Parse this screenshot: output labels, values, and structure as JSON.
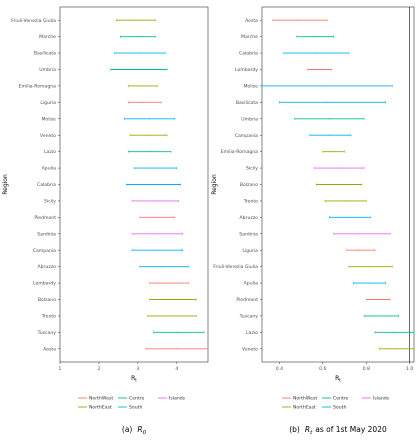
{
  "colors": {
    "NorthWest": "#F8766D",
    "NorthEast": "#A3A500",
    "Centre": "#00BF7D",
    "South": "#00B0F6",
    "Islands": "#E76BF3"
  },
  "chart_data": [
    {
      "type": "errorbar",
      "caption_prefix": "(a)",
      "caption_math": "R",
      "caption_sub": "0",
      "ylabel": "Region",
      "xlabel_main": "R",
      "xlabel_sub": "t",
      "xlim": [
        1,
        4.8
      ],
      "xticks": [
        1,
        2,
        3,
        4
      ],
      "xtick_labels": [
        "1",
        "2",
        "3",
        "4"
      ],
      "rows": [
        {
          "region": "Friuli-Venezia Giulia",
          "group": "NorthEast",
          "low": 2.45,
          "mid": 2.95,
          "high": 3.45
        },
        {
          "region": "Marche",
          "group": "Centre",
          "low": 2.55,
          "mid": 3.0,
          "high": 3.45
        },
        {
          "region": "Basilicata",
          "group": "South",
          "low": 2.4,
          "mid": 3.05,
          "high": 3.7
        },
        {
          "region": "Umbria",
          "group": "Centre",
          "low": 2.3,
          "mid": 3.05,
          "high": 3.75
        },
        {
          "region": "Emilia-Romagna",
          "group": "NorthEast",
          "low": 2.75,
          "mid": 3.1,
          "high": 3.5
        },
        {
          "region": "Liguria",
          "group": "NorthWest",
          "low": 2.75,
          "mid": 3.15,
          "high": 3.6
        },
        {
          "region": "Molise",
          "group": "South",
          "low": 2.65,
          "mid": 3.3,
          "high": 3.95
        },
        {
          "region": "Veneto",
          "group": "NorthEast",
          "low": 2.8,
          "mid": 3.25,
          "high": 3.75
        },
        {
          "region": "Lazio",
          "group": "Centre",
          "low": 2.75,
          "mid": 3.3,
          "high": 3.85
        },
        {
          "region": "Apulia",
          "group": "South",
          "low": 2.9,
          "mid": 3.4,
          "high": 4.0
        },
        {
          "region": "Calabria",
          "group": "South",
          "low": 2.7,
          "mid": 3.4,
          "high": 4.1
        },
        {
          "region": "Sicily",
          "group": "Islands",
          "low": 2.85,
          "mid": 3.4,
          "high": 4.05
        },
        {
          "region": "Piedmont",
          "group": "NorthWest",
          "low": 3.05,
          "mid": 3.5,
          "high": 3.95
        },
        {
          "region": "Sardinia",
          "group": "Islands",
          "low": 2.85,
          "mid": 3.5,
          "high": 4.15
        },
        {
          "region": "Campania",
          "group": "South",
          "low": 2.85,
          "mid": 3.5,
          "high": 4.15
        },
        {
          "region": "Abruzzo",
          "group": "South",
          "low": 3.05,
          "mid": 3.6,
          "high": 4.3
        },
        {
          "region": "Lombardy",
          "group": "NorthWest",
          "low": 3.3,
          "mid": 3.8,
          "high": 4.3
        },
        {
          "region": "Bolzano",
          "group": "NorthEast",
          "low": 3.3,
          "mid": 3.85,
          "high": 4.5
        },
        {
          "region": "Trento",
          "group": "NorthEast",
          "low": 3.25,
          "mid": 3.85,
          "high": 4.5
        },
        {
          "region": "Tuscany",
          "group": "Centre",
          "low": 3.4,
          "mid": 4.0,
          "high": 4.7
        },
        {
          "region": "Aosta",
          "group": "NorthWest",
          "low": 3.2,
          "mid": 4.0,
          "high": 4.8
        }
      ]
    },
    {
      "type": "errorbar",
      "caption_prefix": "(b)",
      "caption_math": "R",
      "caption_sub": "t",
      "caption_suffix": "as of 1st May 2020",
      "ylabel": "Region",
      "xlabel_main": "R",
      "xlabel_sub": "t",
      "xlim": [
        0.32,
        1.02
      ],
      "xticks": [
        0.4,
        0.6,
        0.8,
        1.0
      ],
      "xtick_labels": [
        "0.4",
        "0.6",
        "0.8",
        "1.0"
      ],
      "reference_line": 1.0,
      "rows": [
        {
          "region": "Aosta",
          "group": "NorthWest",
          "low": 0.37,
          "mid": 0.48,
          "high": 0.62
        },
        {
          "region": "Marche",
          "group": "Centre",
          "low": 0.48,
          "mid": 0.56,
          "high": 0.65
        },
        {
          "region": "Calabria",
          "group": "South",
          "low": 0.42,
          "mid": 0.57,
          "high": 0.72
        },
        {
          "region": "Lombardy",
          "group": "NorthWest",
          "low": 0.53,
          "mid": 0.58,
          "high": 0.64
        },
        {
          "region": "Molise",
          "group": "South",
          "low": 0.32,
          "mid": 0.6,
          "high": 0.92
        },
        {
          "region": "Basilicata",
          "group": "South",
          "low": 0.4,
          "mid": 0.62,
          "high": 0.89
        },
        {
          "region": "Umbria",
          "group": "Centre",
          "low": 0.47,
          "mid": 0.63,
          "high": 0.79
        },
        {
          "region": "Campania",
          "group": "South",
          "low": 0.54,
          "mid": 0.63,
          "high": 0.73
        },
        {
          "region": "Emilia-Romagna",
          "group": "NorthEast",
          "low": 0.6,
          "mid": 0.65,
          "high": 0.7
        },
        {
          "region": "Sicily",
          "group": "Islands",
          "low": 0.56,
          "mid": 0.67,
          "high": 0.79
        },
        {
          "region": "Bolzano",
          "group": "NorthEast",
          "low": 0.57,
          "mid": 0.67,
          "high": 0.78
        },
        {
          "region": "Trento",
          "group": "NorthEast",
          "low": 0.61,
          "mid": 0.7,
          "high": 0.8
        },
        {
          "region": "Abruzzo",
          "group": "South",
          "low": 0.63,
          "mid": 0.72,
          "high": 0.82
        },
        {
          "region": "Sardinia",
          "group": "Islands",
          "low": 0.65,
          "mid": 0.77,
          "high": 0.91
        },
        {
          "region": "Liguria",
          "group": "NorthWest",
          "low": 0.71,
          "mid": 0.77,
          "high": 0.84
        },
        {
          "region": "Friuli-Venezia Giulia",
          "group": "NorthEast",
          "low": 0.72,
          "mid": 0.82,
          "high": 0.92
        },
        {
          "region": "Apulia",
          "group": "South",
          "low": 0.74,
          "mid": 0.81,
          "high": 0.89
        },
        {
          "region": "Piedmont",
          "group": "NorthWest",
          "low": 0.8,
          "mid": 0.85,
          "high": 0.91
        },
        {
          "region": "Tuscany",
          "group": "Centre",
          "low": 0.79,
          "mid": 0.86,
          "high": 0.95
        },
        {
          "region": "Lazio",
          "group": "Centre",
          "low": 0.84,
          "mid": 0.93,
          "high": 1.02
        },
        {
          "region": "Veneto",
          "group": "NorthEast",
          "low": 0.86,
          "mid": 0.94,
          "high": 1.02
        }
      ]
    }
  ],
  "legend": {
    "rows": [
      [
        {
          "group": "NorthWest",
          "label": "NorthWest"
        },
        {
          "group": "Centre",
          "label": "Centre"
        },
        {
          "group": "Islands",
          "label": "Islands"
        }
      ],
      [
        {
          "group": "NorthEast",
          "label": "NorthEast"
        },
        {
          "group": "South",
          "label": "South"
        }
      ]
    ]
  }
}
